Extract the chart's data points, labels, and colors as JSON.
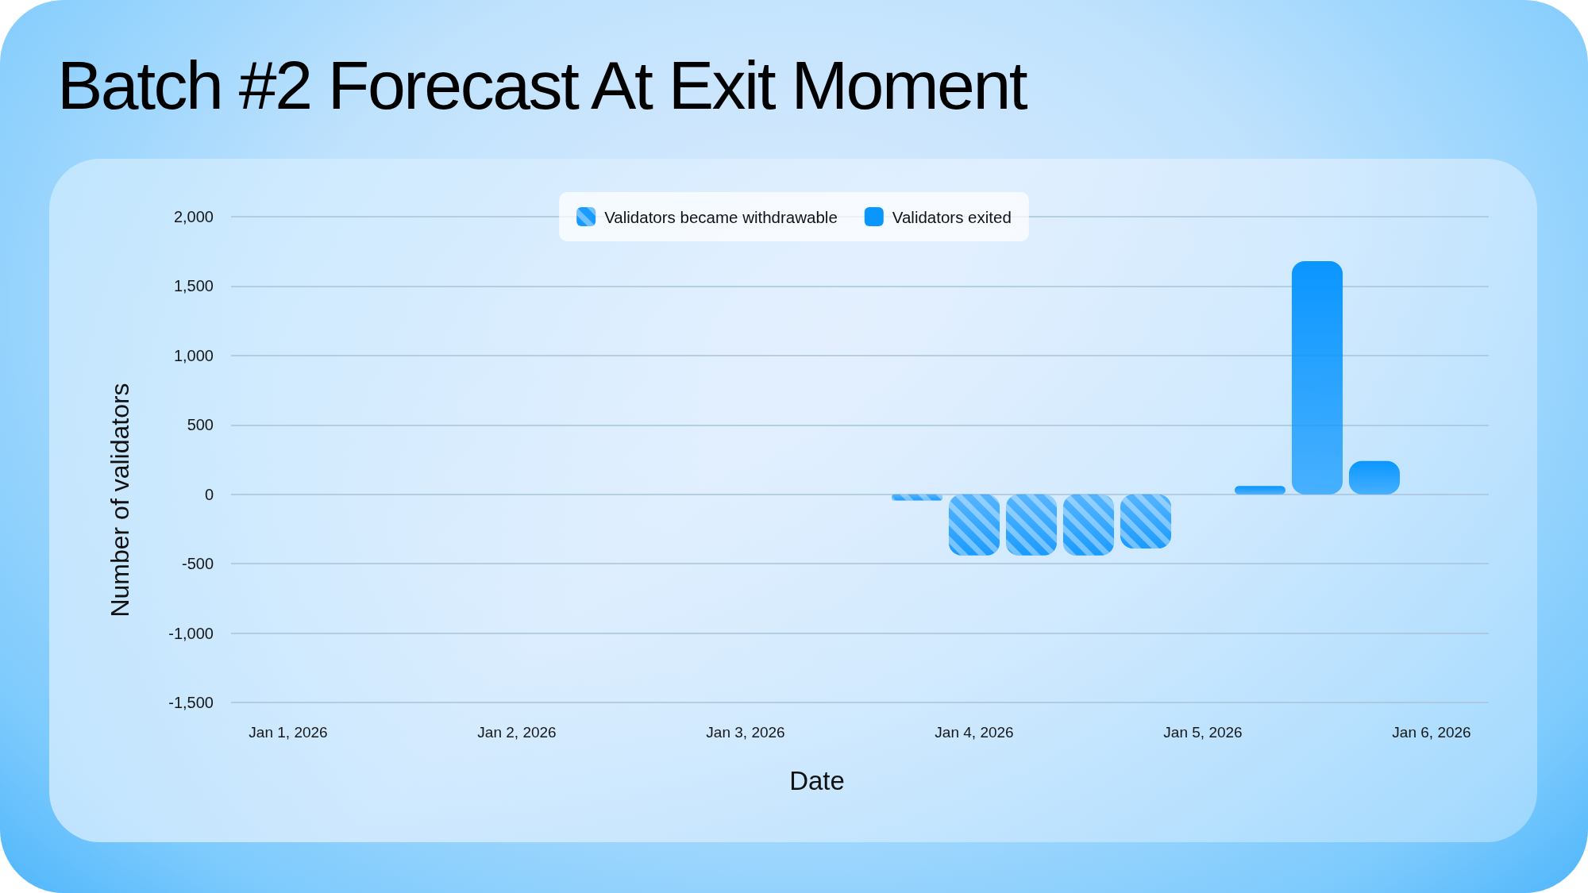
{
  "chart_data": {
    "type": "bar",
    "title": "Batch #2 Forecast At Exit Moment",
    "xlabel": "Date",
    "ylabel": "Number of validators",
    "series": [
      {
        "name": "Validators became withdrawable",
        "color": "#1a9bff",
        "x": [
          "2026-01-03T18:00",
          "2026-01-04T00:00",
          "2026-01-04T06:00",
          "2026-01-04T12:00",
          "2026-01-04T18:00"
        ],
        "values": [
          -45,
          -440,
          -440,
          -440,
          -390
        ]
      },
      {
        "name": "Validators exited",
        "color": "#0a96ff",
        "x": [
          "2026-01-05T06:00",
          "2026-01-05T12:00",
          "2026-01-05T18:00"
        ],
        "values": [
          60,
          1680,
          240
        ]
      }
    ],
    "xlim": [
      "2025-12-31T18:00",
      "2026-01-06T06:00"
    ],
    "xticks": [
      {
        "value": "2026-01-01",
        "label": "Jan 1, 2026"
      },
      {
        "value": "2026-01-02",
        "label": "Jan 2, 2026"
      },
      {
        "value": "2026-01-03",
        "label": "Jan 3, 2026"
      },
      {
        "value": "2026-01-04",
        "label": "Jan 4, 2026"
      },
      {
        "value": "2026-01-05",
        "label": "Jan 5, 2026"
      },
      {
        "value": "2026-01-06",
        "label": "Jan 6, 2026"
      }
    ],
    "ylim": [
      -1500,
      2000
    ],
    "yticks": [
      {
        "value": -1500,
        "label": "-1,500"
      },
      {
        "value": -1000,
        "label": "-1,000"
      },
      -500,
      0,
      500,
      {
        "value": 1000,
        "label": "1,000"
      },
      {
        "value": 1500,
        "label": "1,500"
      },
      {
        "value": 2000,
        "label": "2,000"
      }
    ],
    "grid": "y",
    "legend": "top"
  }
}
